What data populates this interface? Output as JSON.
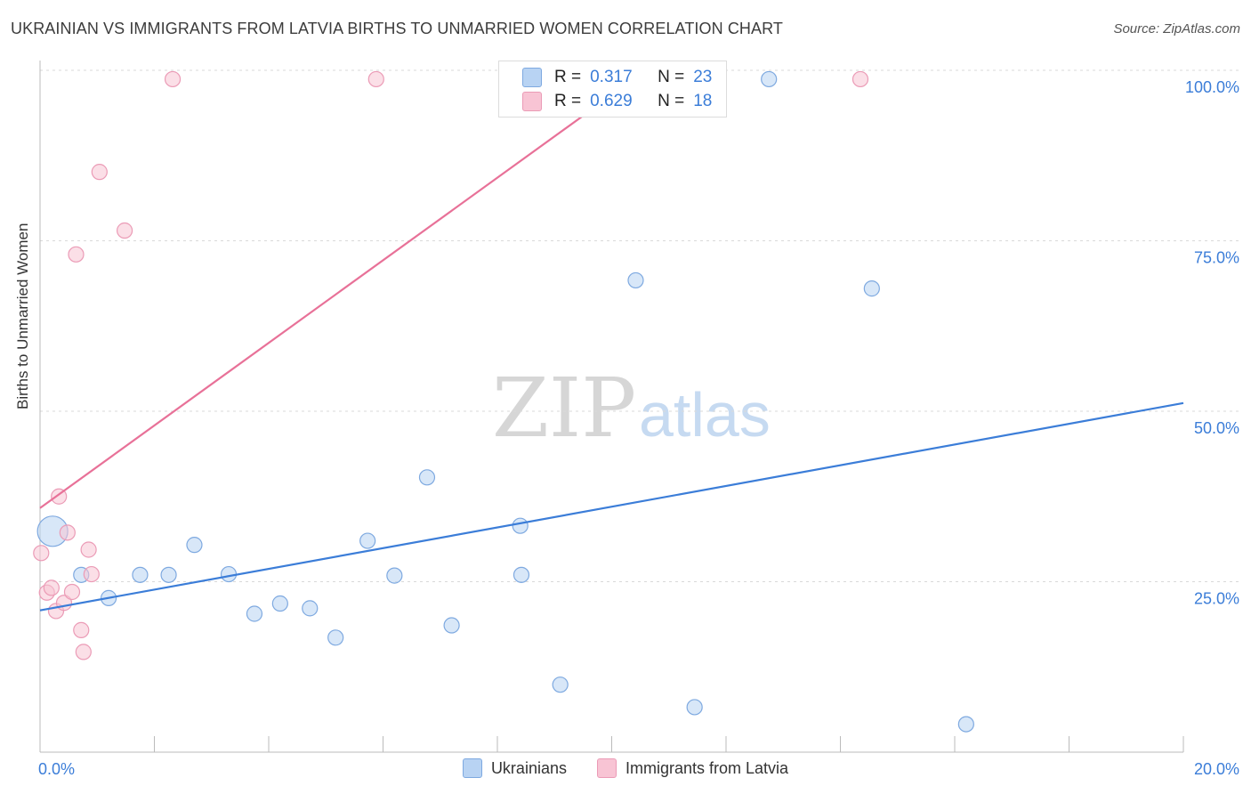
{
  "title": "UKRAINIAN VS IMMIGRANTS FROM LATVIA BIRTHS TO UNMARRIED WOMEN CORRELATION CHART",
  "source": "Source: ZipAtlas.com",
  "watermark": {
    "zip": "ZIP",
    "atlas": "atlas"
  },
  "colors": {
    "blue": "#3b7dd8",
    "blue_fill": "#b8d3f3",
    "pink": "#e87198",
    "pink_fill": "#f8c4d4"
  },
  "inset_legend": [
    {
      "r_label": "R =",
      "r_value": "0.317",
      "n_label": "N =",
      "n_value": "23"
    },
    {
      "r_label": "R =",
      "r_value": "0.629",
      "n_label": "N =",
      "n_value": "18"
    }
  ],
  "legend": [
    "Ukrainians",
    "Immigrants from Latvia"
  ],
  "chart_data": {
    "type": "scatter",
    "title": "UKRAINIAN VS IMMIGRANTS FROM LATVIA BIRTHS TO UNMARRIED WOMEN CORRELATION CHART",
    "xlabel": "",
    "ylabel": "Births to Unmarried Women",
    "xlim": [
      0,
      20
    ],
    "ylim": [
      0,
      100
    ],
    "x_tick_labels": [
      "0.0%",
      "20.0%"
    ],
    "y_tick_labels": [
      "25.0%",
      "50.0%",
      "75.0%",
      "100.0%"
    ],
    "y_ticks": [
      25,
      50,
      75,
      100
    ],
    "grid": true,
    "legend_position": "bottom",
    "series": [
      {
        "name": "Ukrainians",
        "color": "#3b7dd8",
        "points": [
          {
            "x": 0.22,
            "y": 32.4,
            "big": true
          },
          {
            "x": 0.72,
            "y": 26.0
          },
          {
            "x": 1.2,
            "y": 22.6
          },
          {
            "x": 1.75,
            "y": 26.0
          },
          {
            "x": 2.25,
            "y": 26.0
          },
          {
            "x": 2.7,
            "y": 30.4
          },
          {
            "x": 3.3,
            "y": 26.1
          },
          {
            "x": 3.75,
            "y": 20.3
          },
          {
            "x": 4.2,
            "y": 21.8
          },
          {
            "x": 4.72,
            "y": 21.1
          },
          {
            "x": 5.17,
            "y": 16.8
          },
          {
            "x": 5.73,
            "y": 31.0
          },
          {
            "x": 6.2,
            "y": 25.9
          },
          {
            "x": 6.77,
            "y": 40.3
          },
          {
            "x": 7.2,
            "y": 18.6
          },
          {
            "x": 8.4,
            "y": 33.2
          },
          {
            "x": 8.42,
            "y": 26.0
          },
          {
            "x": 9.1,
            "y": 9.9
          },
          {
            "x": 10.42,
            "y": 69.2
          },
          {
            "x": 11.45,
            "y": 6.6
          },
          {
            "x": 12.75,
            "y": 98.7
          },
          {
            "x": 14.55,
            "y": 68.0
          },
          {
            "x": 16.2,
            "y": 4.1
          }
        ],
        "trend": {
          "x0": 0,
          "y0": 20.8,
          "x1": 20,
          "y1": 51.2
        }
      },
      {
        "name": "Immigrants from Latvia",
        "color": "#e87198",
        "points": [
          {
            "x": 0.02,
            "y": 29.2
          },
          {
            "x": 0.12,
            "y": 23.4
          },
          {
            "x": 0.2,
            "y": 24.1
          },
          {
            "x": 0.28,
            "y": 20.7
          },
          {
            "x": 0.33,
            "y": 37.5
          },
          {
            "x": 0.42,
            "y": 21.9
          },
          {
            "x": 0.48,
            "y": 32.2
          },
          {
            "x": 0.56,
            "y": 23.5
          },
          {
            "x": 0.63,
            "y": 73.0
          },
          {
            "x": 0.72,
            "y": 17.9
          },
          {
            "x": 0.76,
            "y": 14.7
          },
          {
            "x": 0.85,
            "y": 29.7
          },
          {
            "x": 0.9,
            "y": 26.1
          },
          {
            "x": 1.04,
            "y": 85.1
          },
          {
            "x": 1.48,
            "y": 76.5
          },
          {
            "x": 2.32,
            "y": 98.7
          },
          {
            "x": 5.88,
            "y": 98.7
          },
          {
            "x": 14.35,
            "y": 98.7
          }
        ],
        "trend": {
          "x0": 0,
          "y0": 35.8,
          "x1": 10.6,
          "y1": 100
        }
      }
    ]
  }
}
